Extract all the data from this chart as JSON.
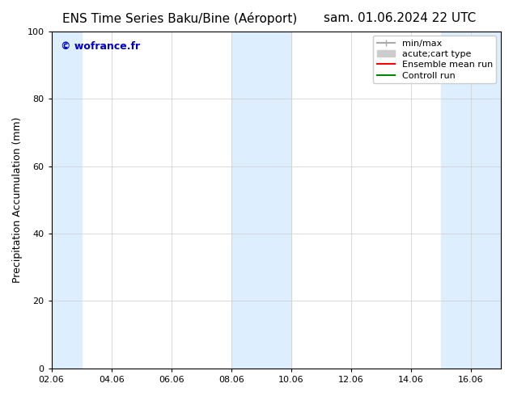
{
  "title": "ENS Time Series Baku/Bine (Aéroport)",
  "title_right": "sam. 01.06.2024 22 UTC",
  "ylabel": "Precipitation Accumulation (mm)",
  "watermark": "© wofrance.fr",
  "watermark_color": "#0000cc",
  "ylim": [
    0,
    100
  ],
  "xlim_start": 2.06,
  "xlim_end": 17.06,
  "xtick_labels": [
    "02.06",
    "04.06",
    "06.06",
    "08.06",
    "10.06",
    "12.06",
    "14.06",
    "16.06"
  ],
  "xtick_positions": [
    2.06,
    4.06,
    6.06,
    8.06,
    10.06,
    12.06,
    14.06,
    16.06
  ],
  "ytick_positions": [
    0,
    20,
    40,
    60,
    80,
    100
  ],
  "background_color": "#ffffff",
  "plot_bg_color": "#ffffff",
  "shaded_regions": [
    {
      "xmin": 2.06,
      "xmax": 3.06,
      "color": "#ddeeff"
    },
    {
      "xmin": 8.06,
      "xmax": 10.06,
      "color": "#ddeeff"
    },
    {
      "xmin": 15.06,
      "xmax": 17.06,
      "color": "#ddeeff"
    }
  ],
  "legend_entries": [
    {
      "label": "min/max",
      "color": "#aaaaaa",
      "lw": 1.5,
      "style": "|-|"
    },
    {
      "label": "acute;cart type",
      "color": "#cccccc",
      "lw": 4
    },
    {
      "label": "Ensemble mean run",
      "color": "#ff0000",
      "lw": 1.5
    },
    {
      "label": "Controll run",
      "color": "#008800",
      "lw": 1.5
    }
  ],
  "title_fontsize": 11,
  "ylabel_fontsize": 9,
  "tick_fontsize": 8,
  "legend_fontsize": 8
}
